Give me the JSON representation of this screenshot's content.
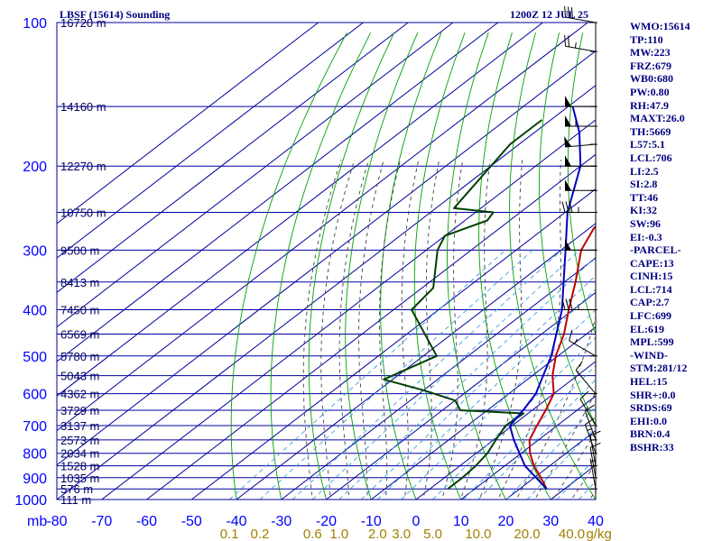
{
  "header": {
    "station": "LBSF (15614) Sounding",
    "time": "1200Z 12 JUL 25"
  },
  "colors": {
    "frame": "#0000a0",
    "isotherm": "#0000a0",
    "dry_adiabat": "#00a000",
    "moist_adiabat": "#404040",
    "mixing_ratio": "#3aa0e0",
    "temperature": "#c00000",
    "dewpoint": "#004000",
    "parcel": "#0000c0",
    "axis_labels": "#0000ff",
    "height_labels": "#000060",
    "mixing_labels": "#a08000",
    "stats_text": "#000080"
  },
  "stats": [
    "WMO:15614",
    "TP:110",
    "MW:223",
    "FRZ:679",
    "WB0:680",
    "PW:0.80",
    "RH:47.9",
    "MAXT:26.0",
    "TH:5669",
    "L57:5.1",
    "LCL:706",
    "LI:2.5",
    "SI:2.8",
    "TT:46",
    "KI:32",
    "SW:96",
    "EI:-0.3",
    "-PARCEL-",
    "CAPE:13",
    "CINH:15",
    "LCL:714",
    "CAP:2.7",
    "LFC:699",
    "EL:619",
    "MPL:599",
    "-WIND-",
    "STM:281/12",
    "HEL:15",
    "SHR+:0.0",
    "SRDS:69",
    "EHI:0.0",
    "BRN:0.4",
    "BSHR:33"
  ],
  "chart_data": {
    "type": "skew-t",
    "title": "LBSF (15614) Sounding",
    "subtitle": "1200Z 12 JUL 25",
    "xlabel": "",
    "ylabel": "mb",
    "y_scale": "log",
    "ylim": [
      1000,
      100
    ],
    "xlim": [
      -80,
      40
    ],
    "pressure_ticks": [
      100,
      200,
      300,
      400,
      500,
      600,
      700,
      800,
      900,
      1000
    ],
    "temperature_ticks": [
      "-80",
      "-70",
      "-60",
      "-50",
      "-40",
      "-30",
      "-20",
      "-10",
      "0",
      "10",
      "20",
      "30",
      "40"
    ],
    "mixing_ratio_labels": [
      "0.1",
      "0.2",
      "0.6",
      "1.0",
      "2.0",
      "3.0",
      "5.0",
      "10.0",
      "20.0",
      "40.0"
    ],
    "mixing_ratio_unit": "g/kg",
    "height_labels": [
      {
        "p": 100,
        "text": "16720 m"
      },
      {
        "p": 150,
        "text": "14160 m"
      },
      {
        "p": 200,
        "text": "12270 m"
      },
      {
        "p": 250,
        "text": "10750 m"
      },
      {
        "p": 300,
        "text": "9500 m"
      },
      {
        "p": 350,
        "text": "8413 m"
      },
      {
        "p": 400,
        "text": "7450 m"
      },
      {
        "p": 450,
        "text": "6569 m"
      },
      {
        "p": 500,
        "text": "5780 m"
      },
      {
        "p": 550,
        "text": "5043 m"
      },
      {
        "p": 600,
        "text": "4362 m"
      },
      {
        "p": 650,
        "text": "3729 m"
      },
      {
        "p": 700,
        "text": "3137 m"
      },
      {
        "p": 750,
        "text": "2573 m"
      },
      {
        "p": 800,
        "text": "2034 m"
      },
      {
        "p": 850,
        "text": "1528 m"
      },
      {
        "p": 900,
        "text": "1035 m"
      },
      {
        "p": 950,
        "text": "576 m"
      },
      {
        "p": 1000,
        "text": "111 m"
      }
    ],
    "series": [
      {
        "key": "temperature",
        "points": [
          [
            950,
            26.0
          ],
          [
            900,
            21.5
          ],
          [
            850,
            16.5
          ],
          [
            800,
            12.0
          ],
          [
            750,
            8.0
          ],
          [
            700,
            5.5
          ],
          [
            650,
            3.0
          ],
          [
            600,
            0.0
          ],
          [
            550,
            -5.5
          ],
          [
            500,
            -10.5
          ],
          [
            450,
            -15.0
          ],
          [
            400,
            -21.0
          ],
          [
            350,
            -27.5
          ],
          [
            300,
            -35.5
          ],
          [
            270,
            -39.0
          ],
          [
            260,
            -39.0
          ],
          [
            250,
            -40.0
          ],
          [
            245,
            -41.5
          ],
          [
            230,
            -43.5
          ],
          [
            200,
            -47.0
          ],
          [
            180,
            -51.0
          ],
          [
            160,
            -54.5
          ],
          [
            140,
            -57.5
          ],
          [
            120,
            -61.0
          ],
          [
            105,
            -63.0
          ],
          [
            100,
            -63.0
          ]
        ]
      },
      {
        "key": "dewpoint",
        "points": [
          [
            950,
            4.0
          ],
          [
            900,
            4.0
          ],
          [
            850,
            3.5
          ],
          [
            800,
            2.5
          ],
          [
            750,
            0.5
          ],
          [
            700,
            -1.5
          ],
          [
            660,
            -1.0
          ],
          [
            650,
            -16.0
          ],
          [
            620,
            -20.0
          ],
          [
            590,
            -30.0
          ],
          [
            560,
            -42.0
          ],
          [
            500,
            -37.0
          ],
          [
            400,
            -56.0
          ],
          [
            360,
            -57.5
          ],
          [
            300,
            -67.5
          ],
          [
            280,
            -70.0
          ],
          [
            260,
            -65.0
          ],
          [
            250,
            -66.0
          ],
          [
            245,
            -76.0
          ],
          [
            180,
            -82.0
          ],
          [
            160,
            -82.0
          ]
        ]
      },
      {
        "key": "parcel",
        "points": [
          [
            950,
            26.0
          ],
          [
            850,
            14.5
          ],
          [
            750,
            4.5
          ],
          [
            700,
            -0.5
          ],
          [
            650,
            -2.0
          ],
          [
            600,
            -4.0
          ],
          [
            500,
            -11.5
          ],
          [
            400,
            -22.5
          ],
          [
            300,
            -39.0
          ],
          [
            250,
            -49.5
          ],
          [
            200,
            -60.0
          ],
          [
            170,
            -70.0
          ],
          [
            150,
            -79.0
          ]
        ]
      }
    ],
    "winds": [
      {
        "p": 100,
        "dir": 280,
        "kt": 30
      },
      {
        "p": 115,
        "dir": 280,
        "kt": 25
      },
      {
        "p": 150,
        "dir": 270,
        "kt": 50
      },
      {
        "p": 165,
        "dir": 270,
        "kt": 55
      },
      {
        "p": 180,
        "dir": 265,
        "kt": 50
      },
      {
        "p": 200,
        "dir": 270,
        "kt": 50
      },
      {
        "p": 225,
        "dir": 270,
        "kt": 50
      },
      {
        "p": 250,
        "dir": 270,
        "kt": 35
      },
      {
        "p": 300,
        "dir": 270,
        "kt": 50
      },
      {
        "p": 400,
        "dir": 270,
        "kt": 35
      },
      {
        "p": 500,
        "dir": 300,
        "kt": 15
      },
      {
        "p": 600,
        "dir": 320,
        "kt": 10
      },
      {
        "p": 700,
        "dir": 330,
        "kt": 10
      },
      {
        "p": 750,
        "dir": 340,
        "kt": 10
      },
      {
        "p": 800,
        "dir": 340,
        "kt": 15
      },
      {
        "p": 850,
        "dir": 350,
        "kt": 10
      },
      {
        "p": 900,
        "dir": 350,
        "kt": 10
      },
      {
        "p": 950,
        "dir": 350,
        "kt": 5
      }
    ]
  }
}
